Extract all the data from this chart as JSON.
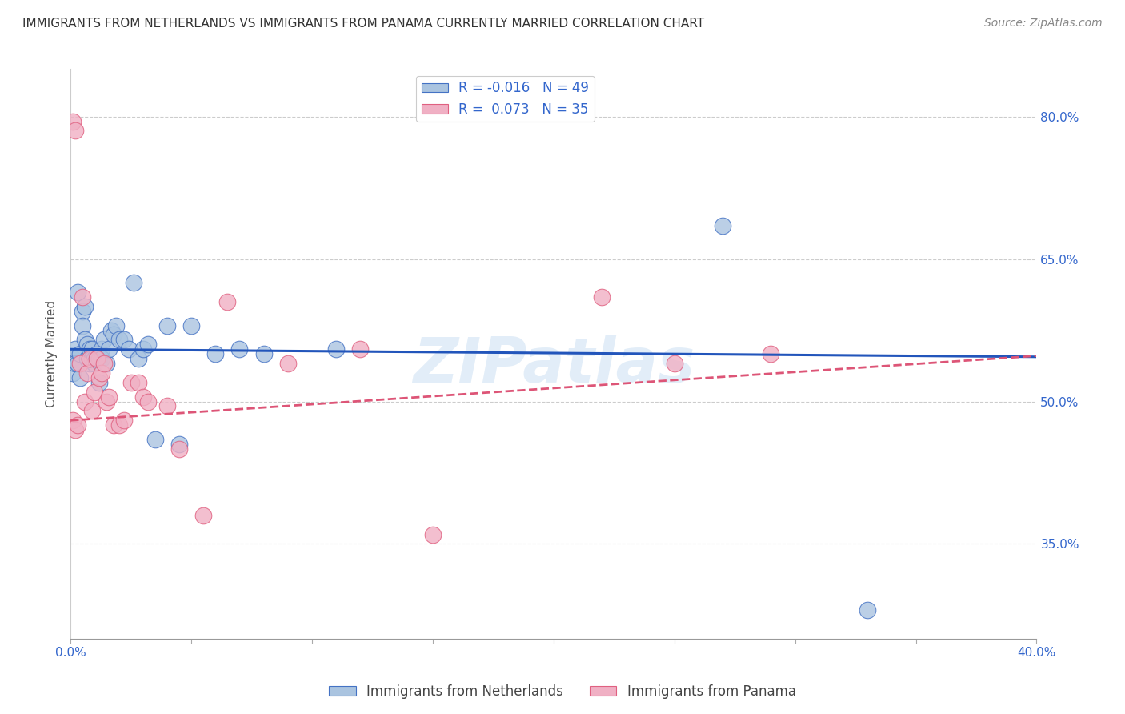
{
  "title": "IMMIGRANTS FROM NETHERLANDS VS IMMIGRANTS FROM PANAMA CURRENTLY MARRIED CORRELATION CHART",
  "source": "Source: ZipAtlas.com",
  "ylabel": "Currently Married",
  "ytick_vals": [
    0.35,
    0.5,
    0.65,
    0.8
  ],
  "ytick_labels": [
    "35.0%",
    "50.0%",
    "65.0%",
    "80.0%"
  ],
  "watermark": "ZIPatlas",
  "netherlands_color": "#aac4e0",
  "panama_color": "#f0b0c4",
  "netherlands_edge_color": "#4472c4",
  "panama_edge_color": "#e06080",
  "netherlands_line_color": "#2255bb",
  "panama_line_color": "#dd5577",
  "background_color": "#ffffff",
  "grid_color": "#cccccc",
  "R_netherlands": -0.016,
  "N_netherlands": 49,
  "R_panama": 0.073,
  "N_panama": 35,
  "netherlands_x": [
    0.001,
    0.001,
    0.002,
    0.002,
    0.003,
    0.003,
    0.004,
    0.004,
    0.005,
    0.005,
    0.006,
    0.006,
    0.007,
    0.007,
    0.008,
    0.008,
    0.009,
    0.009,
    0.01,
    0.01,
    0.011,
    0.011,
    0.012,
    0.012,
    0.013,
    0.013,
    0.014,
    0.015,
    0.016,
    0.017,
    0.018,
    0.019,
    0.02,
    0.022,
    0.024,
    0.026,
    0.028,
    0.03,
    0.032,
    0.035,
    0.04,
    0.045,
    0.05,
    0.06,
    0.07,
    0.08,
    0.11,
    0.27,
    0.33
  ],
  "netherlands_y": [
    0.545,
    0.53,
    0.555,
    0.54,
    0.615,
    0.54,
    0.55,
    0.525,
    0.595,
    0.58,
    0.6,
    0.565,
    0.56,
    0.545,
    0.555,
    0.54,
    0.555,
    0.545,
    0.545,
    0.54,
    0.55,
    0.545,
    0.545,
    0.52,
    0.555,
    0.545,
    0.565,
    0.54,
    0.555,
    0.575,
    0.57,
    0.58,
    0.565,
    0.565,
    0.555,
    0.625,
    0.545,
    0.555,
    0.56,
    0.46,
    0.58,
    0.455,
    0.58,
    0.55,
    0.555,
    0.55,
    0.555,
    0.685,
    0.28
  ],
  "panama_x": [
    0.001,
    0.001,
    0.002,
    0.002,
    0.003,
    0.004,
    0.005,
    0.006,
    0.007,
    0.008,
    0.009,
    0.01,
    0.011,
    0.012,
    0.013,
    0.014,
    0.015,
    0.016,
    0.018,
    0.02,
    0.022,
    0.025,
    0.028,
    0.03,
    0.032,
    0.04,
    0.045,
    0.055,
    0.065,
    0.09,
    0.12,
    0.15,
    0.22,
    0.25,
    0.29
  ],
  "panama_y": [
    0.795,
    0.48,
    0.785,
    0.47,
    0.475,
    0.54,
    0.61,
    0.5,
    0.53,
    0.545,
    0.49,
    0.51,
    0.545,
    0.525,
    0.53,
    0.54,
    0.5,
    0.505,
    0.475,
    0.475,
    0.48,
    0.52,
    0.52,
    0.505,
    0.5,
    0.495,
    0.45,
    0.38,
    0.605,
    0.54,
    0.555,
    0.36,
    0.61,
    0.54,
    0.55
  ],
  "xlim": [
    0.0,
    0.4
  ],
  "ylim": [
    0.25,
    0.85
  ],
  "nl_line_y0": 0.555,
  "nl_line_y1": 0.547,
  "pa_line_y0": 0.48,
  "pa_line_y1": 0.548,
  "title_fontsize": 11,
  "axis_label_fontsize": 11,
  "tick_fontsize": 11,
  "legend_fontsize": 12,
  "source_fontsize": 10
}
